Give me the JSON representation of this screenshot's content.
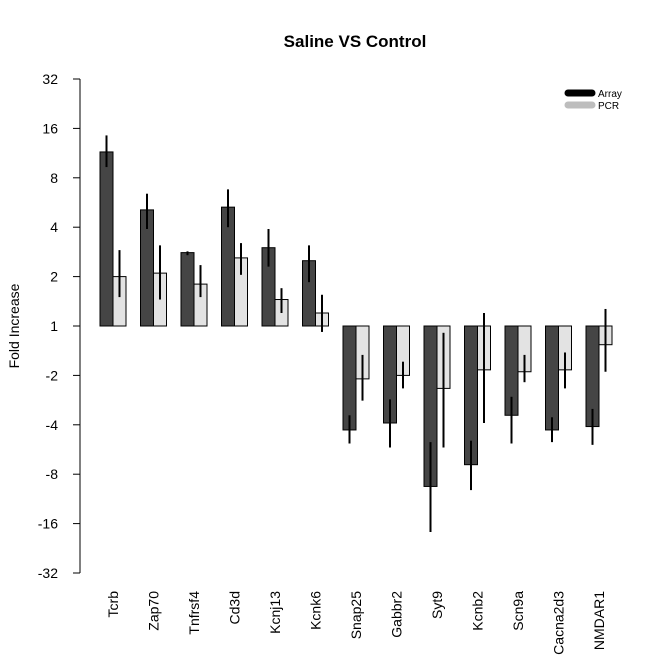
{
  "chart_data": {
    "type": "bar",
    "title": "Saline VS Control",
    "ylabel": "Fold Increase",
    "xlabel": "",
    "y_scale": "signed-log2 fold change",
    "y_ticks": [
      32,
      16,
      8,
      4,
      2,
      1,
      -2,
      -4,
      -8,
      -16,
      -32
    ],
    "ylim": [
      -32,
      32
    ],
    "legend_position": "top-right",
    "categories": [
      "Tcrb",
      "Zap70",
      "Tnfrsf4",
      "Cd3d",
      "Kcnj13",
      "Kcnk6",
      "Snap25",
      "Gabbr2",
      "Syt9",
      "Kcnb2",
      "Scn9a",
      "Cacna2d3",
      "NMDAR1"
    ],
    "series": [
      {
        "name": "Array",
        "color": "#454545",
        "values": [
          11.5,
          5.1,
          2.8,
          5.3,
          3.0,
          2.5,
          -4.3,
          -3.9,
          -9.5,
          -7.0,
          -3.5,
          -4.3,
          -4.1
        ],
        "error_low": [
          9.3,
          3.9,
          2.7,
          4.0,
          2.3,
          1.85,
          -5.2,
          -5.5,
          -18.0,
          -10.0,
          -5.2,
          -5.1,
          -5.3
        ],
        "error_high": [
          14.5,
          6.4,
          2.85,
          6.8,
          3.9,
          3.1,
          -3.5,
          -2.8,
          -5.1,
          -5.0,
          -2.7,
          -3.6,
          -3.2
        ]
      },
      {
        "name": "PCR",
        "color": "#e3e3e3",
        "values": [
          2.0,
          2.1,
          1.8,
          2.6,
          1.45,
          1.2,
          -2.1,
          -2.0,
          -2.4,
          -1.85,
          -1.9,
          -1.85,
          -1.3
        ],
        "error_low": [
          1.5,
          1.45,
          1.5,
          2.05,
          1.2,
          0.92,
          -2.85,
          -2.4,
          -5.5,
          -3.9,
          -2.2,
          -2.4,
          -1.9
        ],
        "error_high": [
          2.9,
          3.1,
          2.35,
          3.2,
          1.7,
          1.55,
          -1.5,
          -1.65,
          -1.1,
          1.2,
          -1.5,
          -1.45,
          1.27
        ]
      }
    ]
  }
}
